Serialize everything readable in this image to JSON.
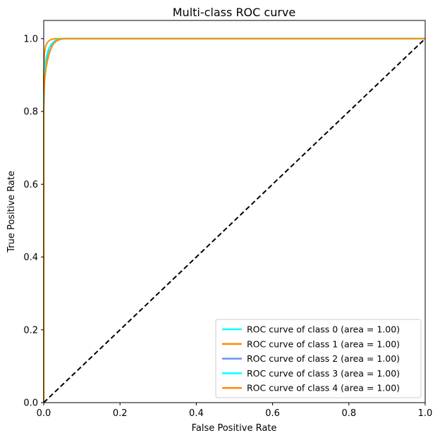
{
  "chart_data": {
    "type": "line",
    "title": "Multi-class ROC curve",
    "xlabel": "False Positive Rate",
    "ylabel": "True Positive Rate",
    "xlim": [
      0.0,
      1.0
    ],
    "ylim": [
      0.0,
      1.05
    ],
    "xticks": [
      0.0,
      0.2,
      0.4,
      0.6,
      0.8,
      1.0
    ],
    "xtick_labels": [
      "0.0",
      "0.2",
      "0.4",
      "0.6",
      "0.8",
      "1.0"
    ],
    "yticks": [
      0.0,
      0.2,
      0.4,
      0.6,
      0.8,
      1.0
    ],
    "ytick_labels": [
      "0.0",
      "0.2",
      "0.4",
      "0.6",
      "0.8",
      "1.0"
    ],
    "grid": false,
    "legend_position": "lower-right",
    "series": [
      {
        "name": "ROC curve of class 0 (area = 1.00)",
        "color": "#00ffff",
        "x": [
          0.0,
          0.0,
          0.002,
          0.005,
          0.01,
          0.015,
          0.02,
          0.025,
          0.03,
          0.04,
          0.06,
          1.0
        ],
        "y": [
          0.0,
          0.82,
          0.9,
          0.93,
          0.96,
          0.975,
          0.985,
          0.99,
          0.995,
          0.998,
          1.0,
          1.0
        ]
      },
      {
        "name": "ROC curve of class 1 (area = 1.00)",
        "color": "#ff8c00",
        "x": [
          0.0,
          0.0,
          0.002,
          0.005,
          0.01,
          0.015,
          0.02,
          0.03,
          1.0
        ],
        "y": [
          0.0,
          0.9,
          0.96,
          0.98,
          0.99,
          0.995,
          0.998,
          1.0,
          1.0
        ]
      },
      {
        "name": "ROC curve of class 2 (area = 1.00)",
        "color": "#6495ed",
        "x": [
          0.0,
          0.0,
          0.003,
          0.008,
          0.015,
          0.025,
          0.035,
          0.05,
          1.0
        ],
        "y": [
          0.0,
          0.85,
          0.91,
          0.95,
          0.975,
          0.99,
          0.996,
          1.0,
          1.0
        ]
      },
      {
        "name": "ROC curve of class 3 (area = 1.00)",
        "color": "#00ffff",
        "x": [
          0.0,
          0.0,
          0.003,
          0.007,
          0.012,
          0.02,
          0.03,
          0.045,
          1.0
        ],
        "y": [
          0.0,
          0.84,
          0.92,
          0.95,
          0.97,
          0.985,
          0.995,
          1.0,
          1.0
        ]
      },
      {
        "name": "ROC curve of class 4 (area = 1.00)",
        "color": "#ff8c00",
        "x": [
          0.0,
          0.0,
          0.002,
          0.006,
          0.012,
          0.018,
          0.025,
          0.035,
          0.05,
          1.0
        ],
        "y": [
          0.0,
          0.8,
          0.88,
          0.92,
          0.95,
          0.97,
          0.985,
          0.995,
          1.0,
          1.0
        ]
      }
    ],
    "reference_line": {
      "x": [
        0.0,
        1.0
      ],
      "y": [
        0.0,
        1.0
      ],
      "color": "#000000",
      "style": "dashed"
    }
  }
}
